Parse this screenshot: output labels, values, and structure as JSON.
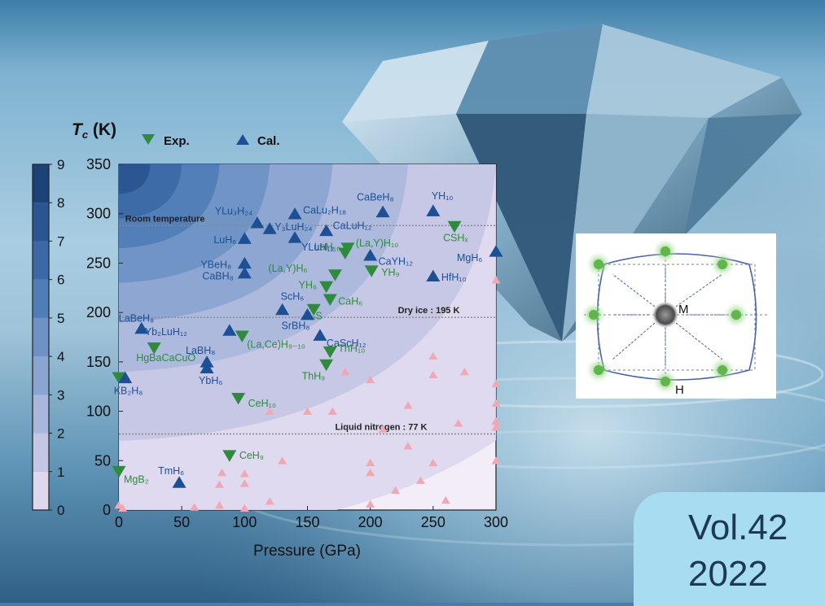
{
  "cover": {
    "volume": "Vol.42",
    "year": "2022"
  },
  "legend": {
    "exp_label": "Exp.",
    "cal_label": "Cal.",
    "exp_color": "#2e8a3c",
    "cal_color": "#1c4f94"
  },
  "colorbar": {
    "ticks": [
      "0",
      "1",
      "2",
      "3",
      "4",
      "5",
      "6",
      "7",
      "8",
      "9"
    ],
    "colors": [
      "#f5eff7",
      "#ddd8ee",
      "#c4c7e4",
      "#aab7dc",
      "#8aa5d0",
      "#6e92c4",
      "#4f7db6",
      "#3b69a6",
      "#2a5590",
      "#1d4278"
    ]
  },
  "inset": {
    "center_label": "M",
    "corner_label": "H",
    "line_color": "#4a63a8",
    "atom_color": "#5fb64a"
  },
  "chart_data": {
    "type": "scatter",
    "title": "",
    "ylabel_symbol": "T",
    "ylabel_sub": "c",
    "ylabel_unit": " (K)",
    "xlabel": "Pressure (GPa)",
    "xlim": [
      0,
      300
    ],
    "ylim": [
      0,
      350
    ],
    "xticks": [
      0,
      50,
      100,
      150,
      200,
      250,
      300
    ],
    "yticks": [
      0,
      50,
      100,
      150,
      200,
      250,
      300,
      350
    ],
    "reference_lines": [
      {
        "y": 288,
        "label": "Room temperature"
      },
      {
        "y": 195,
        "label": "Dry ice : 195 K"
      },
      {
        "y": 77,
        "label": "Liquid nitrogen : 77 K"
      }
    ],
    "series": [
      {
        "name": "Exp.",
        "marker": "triangle-down",
        "points": [
          {
            "x": 0,
            "y": 39,
            "label": "MgB₂"
          },
          {
            "x": 0,
            "y": 134,
            "label": ""
          },
          {
            "x": 28,
            "y": 164,
            "label": "HgBaCaCuO"
          },
          {
            "x": 88,
            "y": 55,
            "label": "CeH₉"
          },
          {
            "x": 95,
            "y": 113,
            "label": "CeH₁₀"
          },
          {
            "x": 98,
            "y": 176,
            "label": "(La,Ce)H₉₋₁₀"
          },
          {
            "x": 155,
            "y": 203,
            "label": "H₃S"
          },
          {
            "x": 165,
            "y": 147,
            "label": "ThH₉"
          },
          {
            "x": 168,
            "y": 160,
            "label": "ThH₁₀"
          },
          {
            "x": 168,
            "y": 213,
            "label": "CaH₆"
          },
          {
            "x": 165,
            "y": 226,
            "label": "YH₆"
          },
          {
            "x": 172,
            "y": 238,
            "label": "(La,Y)H₆"
          },
          {
            "x": 180,
            "y": 260,
            "label": "LaH₁₀"
          },
          {
            "x": 182,
            "y": 265,
            "label": "(La,Y)H₁₀"
          },
          {
            "x": 201,
            "y": 242,
            "label": "YH₉"
          },
          {
            "x": 267,
            "y": 287,
            "label": "CSHₓ"
          }
        ]
      },
      {
        "name": "Cal.",
        "marker": "triangle-up",
        "points": [
          {
            "x": 5,
            "y": 134,
            "label": "KB₂H₈"
          },
          {
            "x": 18,
            "y": 184,
            "label": "LaBeH₈"
          },
          {
            "x": 48,
            "y": 28,
            "label": "TmH₆"
          },
          {
            "x": 70,
            "y": 150,
            "label": "LaBH₈"
          },
          {
            "x": 70,
            "y": 144,
            "label": "YbH₆"
          },
          {
            "x": 88,
            "y": 182,
            "label": "Yb₂LuH₁₂"
          },
          {
            "x": 100,
            "y": 240,
            "label": "CaBH₈"
          },
          {
            "x": 100,
            "y": 250,
            "label": "YBeH₈"
          },
          {
            "x": 100,
            "y": 275,
            "label": "LuH₆"
          },
          {
            "x": 110,
            "y": 291,
            "label": "YLu₃H₂₄"
          },
          {
            "x": 120,
            "y": 285,
            "label": "Y₃LuH₂₄"
          },
          {
            "x": 130,
            "y": 203,
            "label": "ScH₆"
          },
          {
            "x": 140,
            "y": 300,
            "label": "CaLu₂H₁₈"
          },
          {
            "x": 140,
            "y": 276,
            "label": "YLuH₁₂"
          },
          {
            "x": 150,
            "y": 198,
            "label": "SrBH₈"
          },
          {
            "x": 160,
            "y": 177,
            "label": "CaScH₁₂"
          },
          {
            "x": 165,
            "y": 283,
            "label": "CaLuH₁₂"
          },
          {
            "x": 200,
            "y": 258,
            "label": "CaYH₁₂"
          },
          {
            "x": 210,
            "y": 302,
            "label": "CaBeH₈"
          },
          {
            "x": 250,
            "y": 237,
            "label": "HfH₁₀"
          },
          {
            "x": 250,
            "y": 303,
            "label": "YH₁₀"
          },
          {
            "x": 300,
            "y": 262,
            "label": "MgH₆"
          }
        ]
      },
      {
        "name": "",
        "marker": "triangle-up-small",
        "points": [
          {
            "x": 0,
            "y": 5
          },
          {
            "x": 3,
            "y": 2
          },
          {
            "x": 60,
            "y": 3
          },
          {
            "x": 80,
            "y": 5
          },
          {
            "x": 80,
            "y": 26
          },
          {
            "x": 82,
            "y": 38
          },
          {
            "x": 100,
            "y": 2
          },
          {
            "x": 100,
            "y": 27
          },
          {
            "x": 100,
            "y": 37
          },
          {
            "x": 120,
            "y": 9
          },
          {
            "x": 120,
            "y": 100
          },
          {
            "x": 130,
            "y": 50
          },
          {
            "x": 150,
            "y": 100
          },
          {
            "x": 170,
            "y": 100
          },
          {
            "x": 180,
            "y": 140
          },
          {
            "x": 200,
            "y": 6
          },
          {
            "x": 200,
            "y": 38
          },
          {
            "x": 200,
            "y": 48
          },
          {
            "x": 200,
            "y": 132
          },
          {
            "x": 210,
            "y": 82
          },
          {
            "x": 220,
            "y": 20
          },
          {
            "x": 230,
            "y": 65
          },
          {
            "x": 230,
            "y": 106
          },
          {
            "x": 240,
            "y": 30
          },
          {
            "x": 250,
            "y": 48
          },
          {
            "x": 250,
            "y": 137
          },
          {
            "x": 250,
            "y": 156
          },
          {
            "x": 260,
            "y": 10
          },
          {
            "x": 270,
            "y": 88
          },
          {
            "x": 275,
            "y": 140
          },
          {
            "x": 300,
            "y": 50
          },
          {
            "x": 300,
            "y": 84
          },
          {
            "x": 300,
            "y": 90
          },
          {
            "x": 300,
            "y": 108
          },
          {
            "x": 300,
            "y": 128
          },
          {
            "x": 300,
            "y": 233
          }
        ]
      }
    ]
  }
}
